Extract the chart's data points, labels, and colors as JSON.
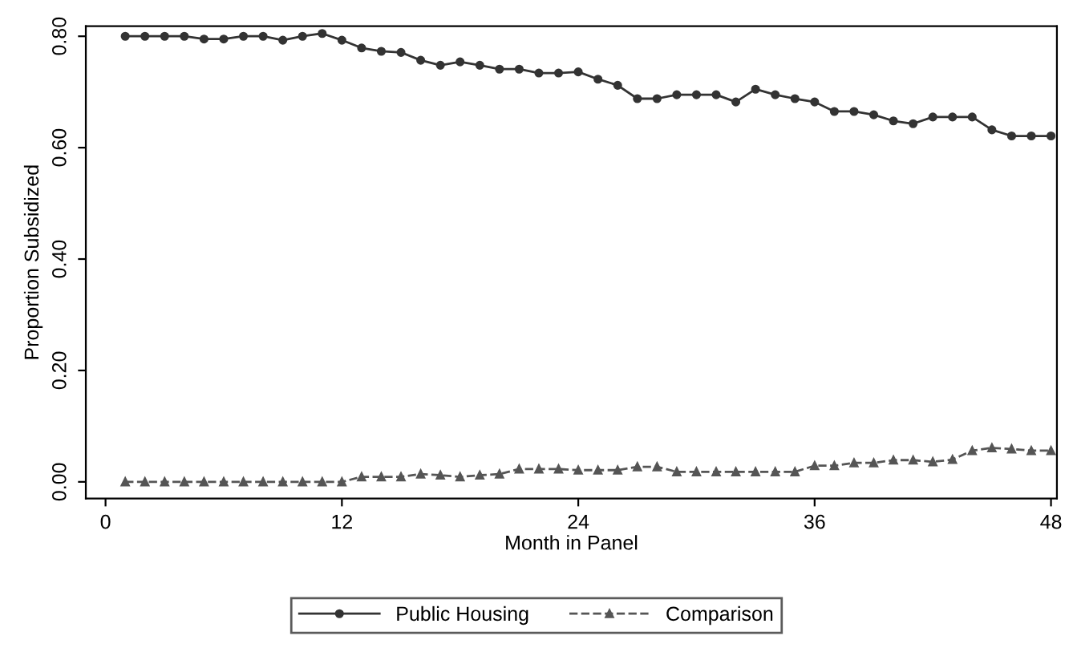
{
  "chart_data": {
    "type": "line",
    "xlabel": "Month in Panel",
    "ylabel": "Proportion Subsidized",
    "x": [
      1,
      2,
      3,
      4,
      5,
      6,
      7,
      8,
      9,
      10,
      11,
      12,
      13,
      14,
      15,
      16,
      17,
      18,
      19,
      20,
      21,
      22,
      23,
      24,
      25,
      26,
      27,
      28,
      29,
      30,
      31,
      32,
      33,
      34,
      35,
      36,
      37,
      38,
      39,
      40,
      41,
      42,
      43,
      44,
      45,
      46,
      47,
      48
    ],
    "series": [
      {
        "name": "Public Housing",
        "color": "#333333",
        "marker": "circle",
        "line_style": "solid",
        "values": [
          0.8,
          0.8,
          0.8,
          0.8,
          0.795,
          0.795,
          0.8,
          0.8,
          0.793,
          0.8,
          0.805,
          0.793,
          0.779,
          0.773,
          0.771,
          0.757,
          0.748,
          0.754,
          0.748,
          0.741,
          0.741,
          0.734,
          0.734,
          0.736,
          0.723,
          0.712,
          0.688,
          0.688,
          0.695,
          0.695,
          0.695,
          0.682,
          0.705,
          0.695,
          0.688,
          0.682,
          0.665,
          0.665,
          0.659,
          0.648,
          0.643,
          0.655,
          0.655,
          0.655,
          0.632,
          0.621,
          0.621,
          0.621
        ]
      },
      {
        "name": "Comparison",
        "color": "#555555",
        "marker": "triangle",
        "line_style": "dashed",
        "values": [
          0.0,
          0.0,
          0.0,
          0.0,
          0.0,
          0.0,
          0.0,
          0.0,
          0.0,
          0.0,
          0.0,
          0.0,
          0.009,
          0.009,
          0.009,
          0.014,
          0.012,
          0.009,
          0.012,
          0.014,
          0.023,
          0.023,
          0.023,
          0.021,
          0.021,
          0.021,
          0.027,
          0.027,
          0.018,
          0.018,
          0.018,
          0.018,
          0.018,
          0.018,
          0.018,
          0.029,
          0.029,
          0.034,
          0.034,
          0.039,
          0.039,
          0.036,
          0.04,
          0.056,
          0.061,
          0.059,
          0.056,
          0.056
        ]
      }
    ],
    "xlim": [
      -1,
      48.3
    ],
    "xticks": [
      0,
      12,
      24,
      36,
      48
    ],
    "ylim": [
      -0.03,
      0.818
    ],
    "yticks": [
      {
        "value": 0,
        "label": "0.00"
      },
      {
        "value": 0.2,
        "label": "0.20"
      },
      {
        "value": 0.4,
        "label": "0.40"
      },
      {
        "value": 0.6,
        "label": "0.60"
      },
      {
        "value": 0.8,
        "label": "0.80"
      }
    ],
    "grid": false,
    "legend": "bottom"
  }
}
